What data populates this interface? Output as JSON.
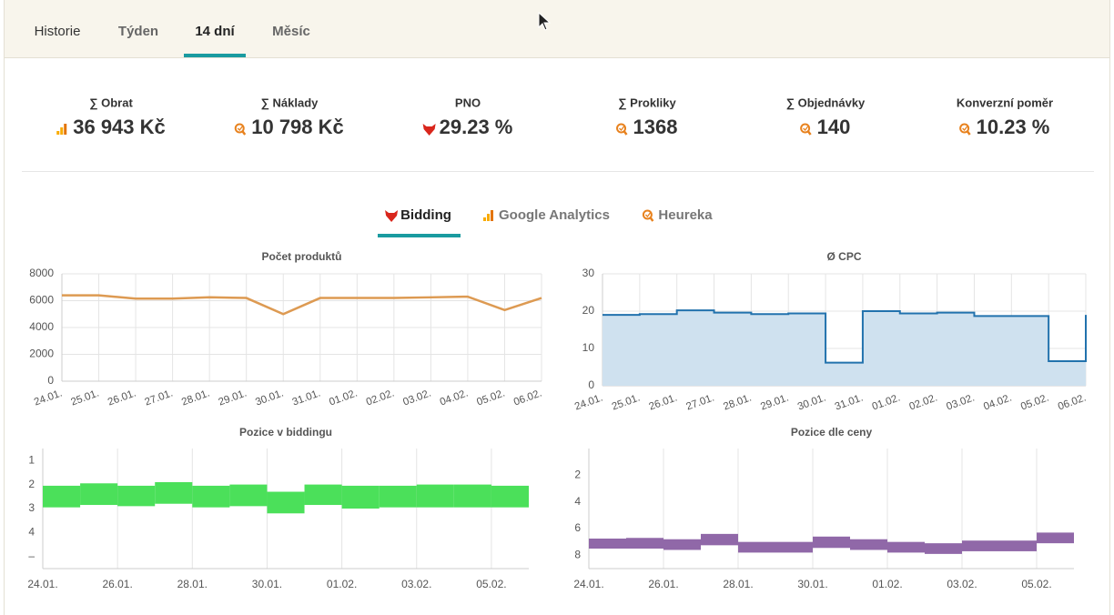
{
  "tabs": [
    "Historie",
    "Týden",
    "14 dní",
    "Měsíc"
  ],
  "active_tab": 2,
  "stats": [
    {
      "label": "∑ Obrat",
      "value": "36 943 Kč",
      "icon": "ga"
    },
    {
      "label": "∑ Náklady",
      "value": "10 798 Kč",
      "icon": "heureka"
    },
    {
      "label": "PNO",
      "value": "29.23 %",
      "icon": "bidding"
    },
    {
      "label": "∑ Prokliky",
      "value": "1368",
      "icon": "heureka"
    },
    {
      "label": "∑ Objednávky",
      "value": "140",
      "icon": "heureka"
    },
    {
      "label": "Konverzní poměr",
      "value": "10.23 %",
      "icon": "heureka"
    }
  ],
  "subtabs": [
    {
      "label": "Bidding",
      "icon": "bidding"
    },
    {
      "label": "Google Analytics",
      "icon": "ga"
    },
    {
      "label": "Heureka",
      "icon": "heureka"
    }
  ],
  "active_subtab": 0,
  "chart_data": [
    {
      "type": "line",
      "title": "Počet produktů",
      "color": "#dd9a52",
      "grid": true,
      "categories": [
        "24.01.",
        "25.01.",
        "26.01.",
        "27.01.",
        "28.01.",
        "29.01.",
        "30.01.",
        "31.01.",
        "01.02.",
        "02.02.",
        "03.02.",
        "04.02.",
        "05.02.",
        "06.02."
      ],
      "values": [
        6400,
        6400,
        6150,
        6150,
        6250,
        6200,
        5000,
        6200,
        6200,
        6200,
        6250,
        6300,
        5300,
        6200
      ],
      "ylim": [
        0,
        8000
      ],
      "yticks": [
        0,
        2000,
        4000,
        6000,
        8000
      ]
    },
    {
      "type": "steparea",
      "title": "Ø CPC",
      "color": "#2272ad",
      "fill": "#cfe1ef",
      "grid": true,
      "categories": [
        "24.01.",
        "25.01.",
        "26.01.",
        "27.01.",
        "28.01.",
        "29.01.",
        "30.01.",
        "31.01.",
        "01.02.",
        "02.02.",
        "03.02.",
        "04.02.",
        "05.02.",
        "06.02."
      ],
      "values": [
        19,
        19.2,
        20.2,
        19.6,
        19.2,
        19.4,
        6.2,
        20,
        19.4,
        19.6,
        18.7,
        18.7,
        6.6,
        19
      ],
      "ylim": [
        0,
        30
      ],
      "yticks": [
        0,
        10,
        20,
        30
      ]
    },
    {
      "type": "rangebar",
      "title": "Pozice v biddingu",
      "color": "#4be05a",
      "grid": true,
      "y_reversed": true,
      "categories": [
        "24.01.",
        null,
        "26.01.",
        null,
        "28.01.",
        null,
        "30.01.",
        null,
        "01.02.",
        null,
        "03.02.",
        null,
        "05.02."
      ],
      "values": [
        [
          2.05,
          2.95
        ],
        [
          1.95,
          2.85
        ],
        [
          2.05,
          2.9
        ],
        [
          1.9,
          2.8
        ],
        [
          2.05,
          2.95
        ],
        [
          2.0,
          2.9
        ],
        [
          2.3,
          3.2
        ],
        [
          2.0,
          2.85
        ],
        [
          2.05,
          3.0
        ],
        [
          2.05,
          2.95
        ],
        [
          2.0,
          2.95
        ],
        [
          2.0,
          2.95
        ],
        [
          2.05,
          2.95
        ]
      ],
      "ylim": [
        0.5,
        5.5
      ],
      "yticks": [
        1,
        2,
        3,
        4,
        {
          "value": 5,
          "label": "–"
        }
      ]
    },
    {
      "type": "rangebar",
      "title": "Pozice dle ceny",
      "color": "#9068a8",
      "grid": true,
      "y_reversed": true,
      "categories": [
        "24.01.",
        null,
        "26.01.",
        null,
        "28.01.",
        null,
        "30.01.",
        null,
        "01.02.",
        null,
        "03.02.",
        null,
        "05.02."
      ],
      "values": [
        [
          6.75,
          7.5
        ],
        [
          6.7,
          7.5
        ],
        [
          6.8,
          7.6
        ],
        [
          6.4,
          7.25
        ],
        [
          7.0,
          7.8
        ],
        [
          7.0,
          7.8
        ],
        [
          6.6,
          7.45
        ],
        [
          6.8,
          7.6
        ],
        [
          7.0,
          7.8
        ],
        [
          7.1,
          7.9
        ],
        [
          6.9,
          7.7
        ],
        [
          6.9,
          7.7
        ],
        [
          6.3,
          7.1
        ]
      ],
      "ylim": [
        0,
        9
      ],
      "yticks": [
        2,
        4,
        6,
        8
      ]
    }
  ]
}
